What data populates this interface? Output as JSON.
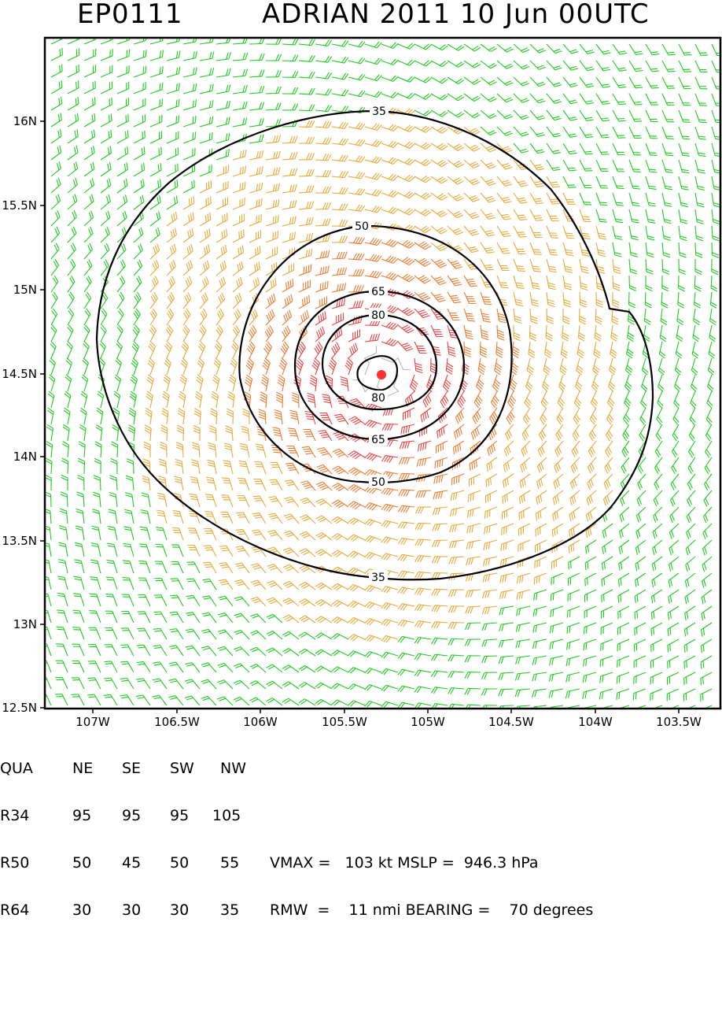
{
  "title": {
    "storm_id": "EP0111",
    "storm_line": "ADRIAN 2011 10 Jun 00UTC"
  },
  "map": {
    "lat_ticks": [
      "16N",
      "15.5N",
      "15N",
      "14.5N",
      "14N",
      "13.5N",
      "13N",
      "12.5N"
    ],
    "lon_ticks": [
      "107W",
      "106.5W",
      "106W",
      "105.5W",
      "105W",
      "104.5W",
      "104W",
      "103.5W"
    ],
    "contour_labels": [
      "35",
      "50",
      "65",
      "80",
      "80",
      "65",
      "50",
      "35"
    ],
    "center_marker": "storm-center",
    "colors": {
      "green_barbs": "#1ecc1e",
      "orange_barbs": "#e8a838",
      "darkorange_barbs": "#ee7a30",
      "red_barbs": "#ee4040",
      "gray_barbs": "#b8b8b8",
      "center": "#ff3030"
    }
  },
  "table": {
    "header": [
      "QUA",
      "NE",
      "SE",
      "SW",
      "NW"
    ],
    "rows": [
      [
        "R34",
        "95",
        "95",
        "95",
        "105"
      ],
      [
        "R50",
        "50",
        "45",
        "50",
        "55"
      ],
      [
        "R64",
        "30",
        "30",
        "30",
        "35"
      ]
    ],
    "vmax_line": "VMAX =   103 kt MSLP =  946.3 hPa",
    "rmw_line": "RMW  =    11 nmi BEARING =    70 degrees"
  }
}
